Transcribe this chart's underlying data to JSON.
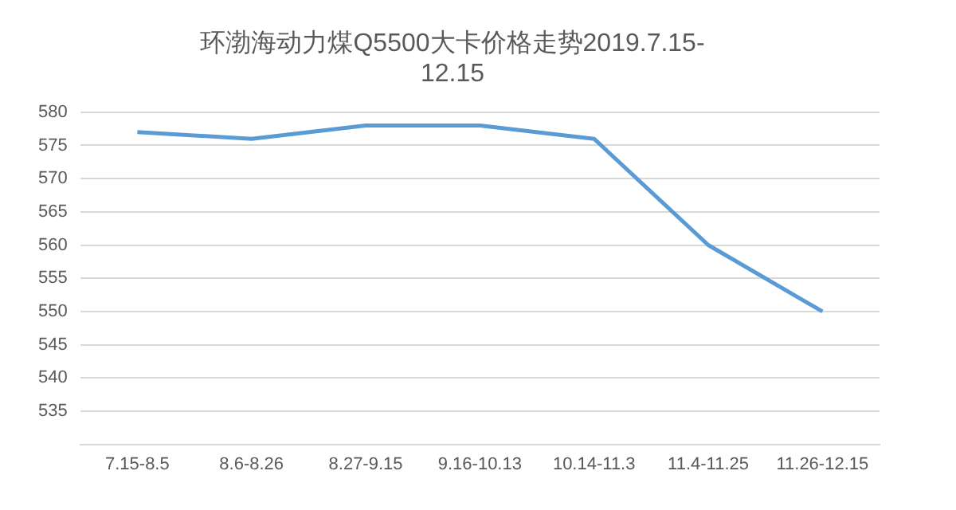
{
  "chart_data": {
    "type": "line",
    "title": [
      "环渤海动力煤Q5500大卡价格走势2019.7.15-",
      "12.15"
    ],
    "categories": [
      "7.15-8.5",
      "8.6-8.26",
      "8.27-9.15",
      "9.16-10.13",
      "10.14-11.3",
      "11.4-11.25",
      "11.26-12.15"
    ],
    "series": [
      {
        "color": "#5b9bd5",
        "values": [
          577,
          576,
          578,
          578,
          576,
          560,
          550
        ]
      }
    ],
    "ylim": [
      530,
      580
    ],
    "yticks": [
      535,
      540,
      545,
      550,
      555,
      560,
      565,
      570,
      575,
      580
    ],
    "grid": "y",
    "marker": "none",
    "line_style": "solid",
    "legend": false
  }
}
